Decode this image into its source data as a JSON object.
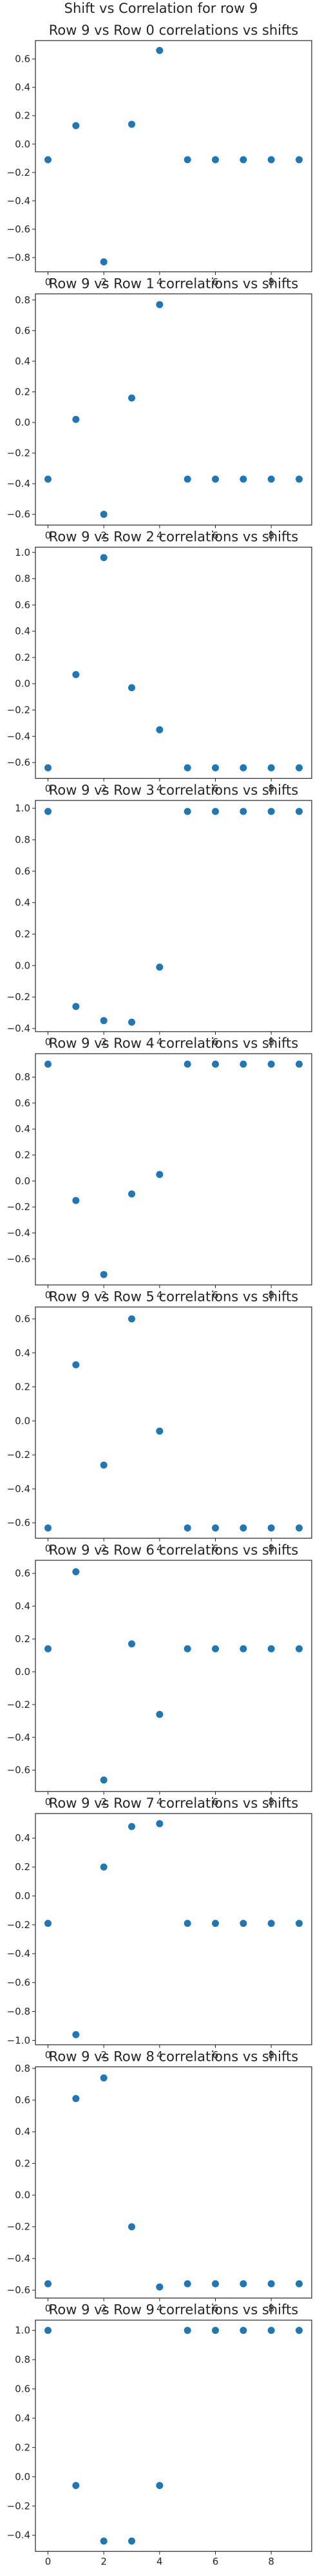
{
  "figure": {
    "suptitle": "Shift vs Correlation for row 9"
  },
  "style": {
    "marker_color": "#1f77b4",
    "axes_color": "#262626",
    "background": "#ffffff"
  },
  "chart_data": [
    {
      "type": "scatter",
      "title": "Row 9 vs Row 0 correlations vs shifts",
      "x": [
        0,
        1,
        2,
        3,
        4,
        5,
        6,
        7,
        8,
        9
      ],
      "y": [
        -0.11,
        0.13,
        -0.83,
        0.14,
        0.66,
        -0.11,
        -0.11,
        -0.11,
        -0.11,
        -0.11
      ],
      "xlim": [
        -0.45,
        9.45
      ],
      "ylim": [
        -0.9,
        0.73
      ],
      "xticks": [
        0,
        2,
        4,
        6,
        8
      ],
      "yticks": [
        -0.8,
        -0.6,
        -0.4,
        -0.2,
        0.0,
        0.2,
        0.4,
        0.6
      ],
      "ytick_labels": [
        "−0.8",
        "−0.6",
        "−0.4",
        "−0.2",
        "0.0",
        "0.2",
        "0.4",
        "0.6"
      ],
      "grid": false
    },
    {
      "type": "scatter",
      "title": "Row 9 vs Row 1 correlations vs shifts",
      "x": [
        0,
        1,
        2,
        3,
        4,
        5,
        6,
        7,
        8,
        9
      ],
      "y": [
        -0.37,
        0.02,
        -0.6,
        0.16,
        0.77,
        -0.37,
        -0.37,
        -0.37,
        -0.37,
        -0.37
      ],
      "xlim": [
        -0.45,
        9.45
      ],
      "ylim": [
        -0.67,
        0.84
      ],
      "xticks": [
        0,
        2,
        4,
        6,
        8
      ],
      "yticks": [
        -0.6,
        -0.4,
        -0.2,
        0.0,
        0.2,
        0.4,
        0.6,
        0.8
      ],
      "ytick_labels": [
        "−0.6",
        "−0.4",
        "−0.2",
        "0.0",
        "0.2",
        "0.4",
        "0.6",
        "0.8"
      ],
      "grid": false
    },
    {
      "type": "scatter",
      "title": "Row 9 vs Row 2 correlations vs shifts",
      "x": [
        0,
        1,
        2,
        3,
        4,
        5,
        6,
        7,
        8,
        9
      ],
      "y": [
        -0.64,
        0.07,
        0.96,
        -0.03,
        -0.35,
        -0.64,
        -0.64,
        -0.64,
        -0.64,
        -0.64
      ],
      "xlim": [
        -0.45,
        9.45
      ],
      "ylim": [
        -0.72,
        1.04
      ],
      "xticks": [
        0,
        2,
        4,
        6,
        8
      ],
      "yticks": [
        -0.6,
        -0.4,
        -0.2,
        0.0,
        0.2,
        0.4,
        0.6,
        0.8,
        1.0
      ],
      "ytick_labels": [
        "−0.6",
        "−0.4",
        "−0.2",
        "0.0",
        "0.2",
        "0.4",
        "0.6",
        "0.8",
        "1.0"
      ],
      "grid": false
    },
    {
      "type": "scatter",
      "title": "Row 9 vs Row 3 correlations vs shifts",
      "x": [
        0,
        1,
        2,
        3,
        4,
        5,
        6,
        7,
        8,
        9
      ],
      "y": [
        0.98,
        -0.26,
        -0.35,
        -0.36,
        -0.01,
        0.98,
        0.98,
        0.98,
        0.98,
        0.98
      ],
      "xlim": [
        -0.45,
        9.45
      ],
      "ylim": [
        -0.42,
        1.05
      ],
      "xticks": [
        0,
        2,
        4,
        6,
        8
      ],
      "yticks": [
        -0.4,
        -0.2,
        0.0,
        0.2,
        0.4,
        0.6,
        0.8,
        1.0
      ],
      "ytick_labels": [
        "−0.4",
        "−0.2",
        "0.0",
        "0.2",
        "0.4",
        "0.6",
        "0.8",
        "1.0"
      ],
      "grid": false
    },
    {
      "type": "scatter",
      "title": "Row 9 vs Row 4 correlations vs shifts",
      "x": [
        0,
        1,
        2,
        3,
        4,
        5,
        6,
        7,
        8,
        9
      ],
      "y": [
        0.9,
        -0.15,
        -0.72,
        -0.1,
        0.05,
        0.9,
        0.9,
        0.9,
        0.9,
        0.9
      ],
      "xlim": [
        -0.45,
        9.45
      ],
      "ylim": [
        -0.8,
        0.98
      ],
      "xticks": [
        0,
        2,
        4,
        6,
        8
      ],
      "yticks": [
        -0.6,
        -0.4,
        -0.2,
        0.0,
        0.2,
        0.4,
        0.6,
        0.8
      ],
      "ytick_labels": [
        "−0.6",
        "−0.4",
        "−0.2",
        "0.0",
        "0.2",
        "0.4",
        "0.6",
        "0.8"
      ],
      "grid": false
    },
    {
      "type": "scatter",
      "title": "Row 9 vs Row 5 correlations vs shifts",
      "x": [
        0,
        1,
        2,
        3,
        4,
        5,
        6,
        7,
        8,
        9
      ],
      "y": [
        -0.63,
        0.33,
        -0.26,
        0.6,
        -0.06,
        -0.63,
        -0.63,
        -0.63,
        -0.63,
        -0.63
      ],
      "xlim": [
        -0.45,
        9.45
      ],
      "ylim": [
        -0.69,
        0.67
      ],
      "xticks": [
        0,
        2,
        4,
        6,
        8
      ],
      "yticks": [
        -0.6,
        -0.4,
        -0.2,
        0.0,
        0.2,
        0.4,
        0.6
      ],
      "ytick_labels": [
        "−0.6",
        "−0.4",
        "−0.2",
        "0.0",
        "0.2",
        "0.4",
        "0.6"
      ],
      "grid": false
    },
    {
      "type": "scatter",
      "title": "Row 9 vs Row 6 correlations vs shifts",
      "x": [
        0,
        1,
        2,
        3,
        4,
        5,
        6,
        7,
        8,
        9
      ],
      "y": [
        0.14,
        0.61,
        -0.66,
        0.17,
        -0.26,
        0.14,
        0.14,
        0.14,
        0.14,
        0.14
      ],
      "xlim": [
        -0.45,
        9.45
      ],
      "ylim": [
        -0.73,
        0.68
      ],
      "xticks": [
        0,
        2,
        4,
        6,
        8
      ],
      "yticks": [
        -0.6,
        -0.4,
        -0.2,
        0.0,
        0.2,
        0.4,
        0.6
      ],
      "ytick_labels": [
        "−0.6",
        "−0.4",
        "−0.2",
        "0.0",
        "0.2",
        "0.4",
        "0.6"
      ],
      "grid": false
    },
    {
      "type": "scatter",
      "title": "Row 9 vs Row 7 correlations vs shifts",
      "x": [
        0,
        1,
        2,
        3,
        4,
        5,
        6,
        7,
        8,
        9
      ],
      "y": [
        -0.19,
        -0.96,
        0.2,
        0.48,
        0.5,
        -0.19,
        -0.19,
        -0.19,
        -0.19,
        -0.19
      ],
      "xlim": [
        -0.45,
        9.45
      ],
      "ylim": [
        -1.03,
        0.57
      ],
      "xticks": [
        0,
        2,
        4,
        6,
        8
      ],
      "yticks": [
        -1.0,
        -0.8,
        -0.6,
        -0.4,
        -0.2,
        0.0,
        0.2,
        0.4
      ],
      "ytick_labels": [
        "−1.0",
        "−0.8",
        "−0.6",
        "−0.4",
        "−0.2",
        "0.0",
        "0.2",
        "0.4"
      ],
      "grid": false
    },
    {
      "type": "scatter",
      "title": "Row 9 vs Row 8 correlations vs shifts",
      "x": [
        0,
        1,
        2,
        3,
        4,
        5,
        6,
        7,
        8,
        9
      ],
      "y": [
        -0.56,
        0.61,
        0.74,
        -0.2,
        -0.58,
        -0.56,
        -0.56,
        -0.56,
        -0.56,
        -0.56
      ],
      "xlim": [
        -0.45,
        9.45
      ],
      "ylim": [
        -0.65,
        0.81
      ],
      "xticks": [
        0,
        2,
        4,
        6,
        8
      ],
      "yticks": [
        -0.6,
        -0.4,
        -0.2,
        0.0,
        0.2,
        0.4,
        0.6,
        0.8
      ],
      "ytick_labels": [
        "−0.6",
        "−0.4",
        "−0.2",
        "0.0",
        "0.2",
        "0.4",
        "0.6",
        "0.8"
      ],
      "grid": false
    },
    {
      "type": "scatter",
      "title": "Row 9 vs Row 9 correlations vs shifts",
      "x": [
        0,
        1,
        2,
        3,
        4,
        5,
        6,
        7,
        8,
        9
      ],
      "y": [
        1.0,
        -0.06,
        -0.44,
        -0.44,
        -0.06,
        1.0,
        1.0,
        1.0,
        1.0,
        1.0
      ],
      "xlim": [
        -0.45,
        9.45
      ],
      "ylim": [
        -0.51,
        1.07
      ],
      "xticks": [
        0,
        2,
        4,
        6,
        8
      ],
      "yticks": [
        -0.4,
        -0.2,
        0.0,
        0.2,
        0.4,
        0.6,
        0.8,
        1.0
      ],
      "ytick_labels": [
        "−0.4",
        "−0.2",
        "0.0",
        "0.2",
        "0.4",
        "0.6",
        "0.8",
        "1.0"
      ],
      "grid": false
    }
  ]
}
